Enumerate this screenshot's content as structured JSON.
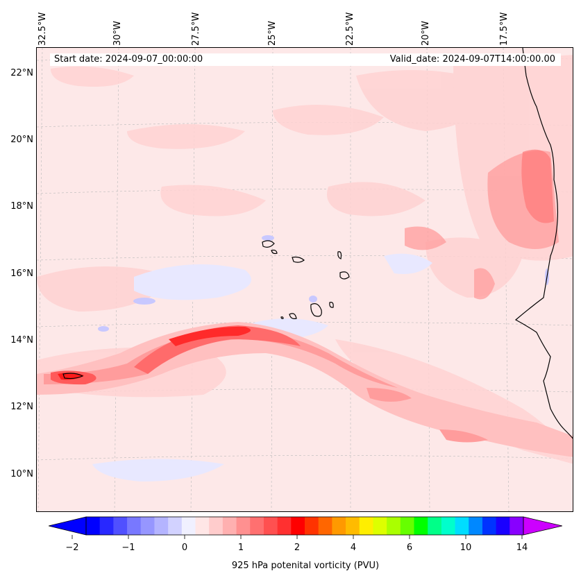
{
  "map": {
    "start_date": "Start date: 2024-09-07_00:00:00",
    "valid_date": "Valid_date: 2024-09-07T14:00:00.00",
    "longitude_ticks": [
      "32.5°W",
      "30°W",
      "27.5°W",
      "25°W",
      "22.5°W",
      "20°W",
      "17.5°W"
    ],
    "latitude_ticks": [
      "22°N",
      "20°N",
      "18°N",
      "16°N",
      "14°N",
      "12°N",
      "10°N"
    ],
    "extent": {
      "lon_min": -32.5,
      "lon_max": -15.2,
      "lat_min": 8.9,
      "lat_max": 22.8
    },
    "field": "925 hPa potential vorticity",
    "colors": {
      "background_tint": "#fde8e8",
      "max_core": "#ff1a1a",
      "negative": "#c8c8ff",
      "coastline": "#000000"
    }
  },
  "colorbar": {
    "label": "925 hPa potenital vorticity (PVU)",
    "ticks": [
      "−2",
      "−1",
      "0",
      "1",
      "2",
      "4",
      "6",
      "10",
      "14"
    ],
    "colors": [
      "#0000ff",
      "#2828ff",
      "#5050ff",
      "#7878ff",
      "#9696ff",
      "#b4b4ff",
      "#d2d2ff",
      "#f0f0ff",
      "#ffe6e6",
      "#ffcccc",
      "#ffb0b0",
      "#ff9090",
      "#ff7070",
      "#ff5050",
      "#ff3030",
      "#ff0000",
      "#ff3300",
      "#ff6600",
      "#ff9900",
      "#ffbb00",
      "#ffee00",
      "#ddff00",
      "#aaff00",
      "#66ff00",
      "#00ff00",
      "#00ff88",
      "#00ffcc",
      "#00ddff",
      "#0088ff",
      "#0033ff",
      "#1a00ff",
      "#8800ff"
    ],
    "upper_extend_color": "#cc00ff"
  }
}
